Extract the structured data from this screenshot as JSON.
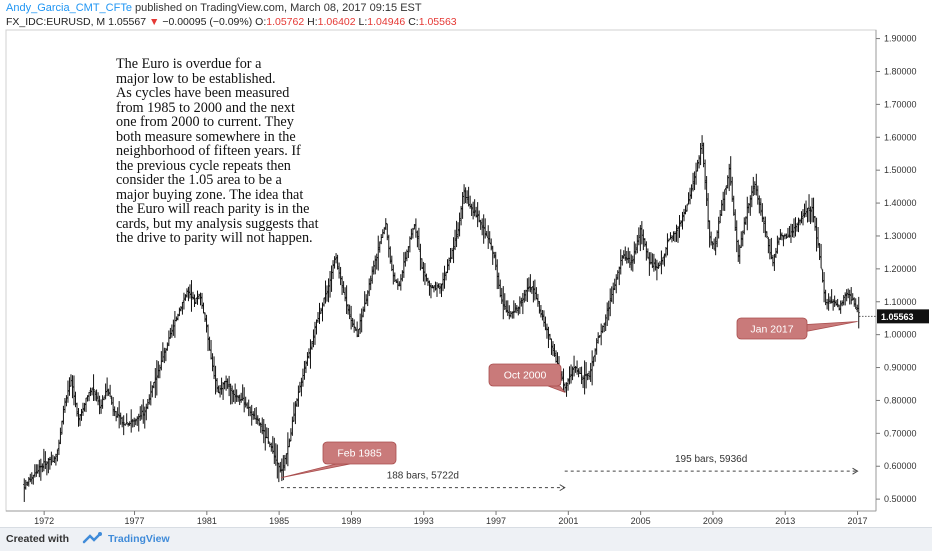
{
  "header": {
    "author": "Andy_Garcia_CMT_CFTe",
    "published_text": "published on TradingView.com, March 08, 2017 09:15 EST",
    "symbol": "FX_IDC:EURUSD, M",
    "last": "1.05567",
    "change": "−0.00095 (−0.09%)",
    "o_label": "O:",
    "o_value": "1.05762",
    "h_label": "H:",
    "h_value": "1.06402",
    "l_label": "L:",
    "l_value": "1.04946",
    "c_label": "C:",
    "c_value": "1.05563"
  },
  "note": "The Euro is overdue for a\nmajor low to be established.\nAs cycles have been measured\nfrom 1985 to 2000 and the next\none from 2000 to current.  They\nboth measure somewhere in the\nneighborhood of fifteen years. If\nthe previous cycle repeats then\nconsider the 1.05 area to be a\nmajor buying zone.  The idea that\nthe Euro will reach parity is in the\ncards, but my analysis suggests that\nthe drive to parity will not happen.",
  "footer": {
    "created_with": "Created with",
    "brand": "TradingView"
  },
  "colors": {
    "callout": "#c97a7a",
    "callout_border": "#a94e4e",
    "bars": "#111111",
    "last_price_bg": "#111111"
  },
  "chart_data": {
    "type": "ohlc-bar",
    "symbol": "EURUSD",
    "timeframe": "M",
    "xlim": [
      1970.0,
      2017.8
    ],
    "ylim": [
      0.47,
      1.92
    ],
    "x_ticks": [
      "1972",
      "1977",
      "1981",
      "1985",
      "1989",
      "1993",
      "1997",
      "2001",
      "2005",
      "2009",
      "2013",
      "2017"
    ],
    "x_tick_values": [
      1972,
      1977,
      1981,
      1985,
      1989,
      1993,
      1997,
      2001,
      2005,
      2009,
      2013,
      2017
    ],
    "y_ticks": [
      "0.50000",
      "0.60000",
      "0.70000",
      "0.80000",
      "0.90000",
      "1.00000",
      "1.10000",
      "1.20000",
      "1.30000",
      "1.40000",
      "1.50000",
      "1.60000",
      "1.70000",
      "1.80000",
      "1.90000"
    ],
    "y_tick_values": [
      0.5,
      0.6,
      0.7,
      0.8,
      0.9,
      1.0,
      1.1,
      1.2,
      1.3,
      1.4,
      1.5,
      1.6,
      1.7,
      1.8,
      1.9
    ],
    "last_price_label": "1.05563",
    "last_price": 1.05563,
    "price_path": [
      [
        1970.9,
        0.54
      ],
      [
        1971.5,
        0.58
      ],
      [
        1972.0,
        0.61
      ],
      [
        1972.5,
        0.62
      ],
      [
        1972.8,
        0.66
      ],
      [
        1973.1,
        0.78
      ],
      [
        1973.5,
        0.86
      ],
      [
        1973.9,
        0.74
      ],
      [
        1974.3,
        0.8
      ],
      [
        1974.7,
        0.84
      ],
      [
        1975.1,
        0.78
      ],
      [
        1975.5,
        0.84
      ],
      [
        1975.9,
        0.76
      ],
      [
        1976.4,
        0.73
      ],
      [
        1977.0,
        0.74
      ],
      [
        1977.6,
        0.77
      ],
      [
        1978.0,
        0.84
      ],
      [
        1978.5,
        0.92
      ],
      [
        1979.0,
        1.0
      ],
      [
        1979.5,
        1.08
      ],
      [
        1979.9,
        1.13
      ],
      [
        1980.3,
        1.1
      ],
      [
        1980.6,
        1.12
      ],
      [
        1980.9,
        1.05
      ],
      [
        1981.2,
        0.94
      ],
      [
        1981.6,
        0.82
      ],
      [
        1982.0,
        0.86
      ],
      [
        1982.5,
        0.82
      ],
      [
        1983.0,
        0.8
      ],
      [
        1983.5,
        0.76
      ],
      [
        1984.0,
        0.72
      ],
      [
        1984.5,
        0.66
      ],
      [
        1985.1,
        0.58
      ],
      [
        1985.5,
        0.66
      ],
      [
        1985.9,
        0.78
      ],
      [
        1986.4,
        0.9
      ],
      [
        1986.9,
        1.0
      ],
      [
        1987.3,
        1.08
      ],
      [
        1987.8,
        1.16
      ],
      [
        1988.1,
        1.24
      ],
      [
        1988.5,
        1.14
      ],
      [
        1988.9,
        1.06
      ],
      [
        1989.3,
        1.0
      ],
      [
        1989.7,
        1.08
      ],
      [
        1990.1,
        1.18
      ],
      [
        1990.5,
        1.26
      ],
      [
        1990.9,
        1.34
      ],
      [
        1991.2,
        1.2
      ],
      [
        1991.6,
        1.14
      ],
      [
        1992.0,
        1.24
      ],
      [
        1992.5,
        1.34
      ],
      [
        1992.9,
        1.2
      ],
      [
        1993.4,
        1.14
      ],
      [
        1993.9,
        1.14
      ],
      [
        1994.4,
        1.22
      ],
      [
        1994.9,
        1.32
      ],
      [
        1995.2,
        1.44
      ],
      [
        1995.6,
        1.38
      ],
      [
        1996.0,
        1.36
      ],
      [
        1996.5,
        1.3
      ],
      [
        1996.9,
        1.24
      ],
      [
        1997.3,
        1.1
      ],
      [
        1997.7,
        1.06
      ],
      [
        1998.2,
        1.08
      ],
      [
        1998.7,
        1.14
      ],
      [
        1999.1,
        1.14
      ],
      [
        1999.5,
        1.06
      ],
      [
        1999.9,
        1.0
      ],
      [
        2000.3,
        0.92
      ],
      [
        2000.8,
        0.84
      ],
      [
        2001.3,
        0.9
      ],
      [
        2001.8,
        0.87
      ],
      [
        2002.2,
        0.88
      ],
      [
        2002.6,
        0.98
      ],
      [
        2003.0,
        1.04
      ],
      [
        2003.5,
        1.14
      ],
      [
        2004.0,
        1.24
      ],
      [
        2004.5,
        1.22
      ],
      [
        2005.0,
        1.32
      ],
      [
        2005.5,
        1.22
      ],
      [
        2006.0,
        1.2
      ],
      [
        2006.5,
        1.28
      ],
      [
        2007.0,
        1.32
      ],
      [
        2007.5,
        1.38
      ],
      [
        2008.0,
        1.48
      ],
      [
        2008.4,
        1.58
      ],
      [
        2008.8,
        1.3
      ],
      [
        2009.1,
        1.26
      ],
      [
        2009.5,
        1.4
      ],
      [
        2009.9,
        1.5
      ],
      [
        2010.4,
        1.24
      ],
      [
        2010.8,
        1.36
      ],
      [
        2011.3,
        1.46
      ],
      [
        2011.8,
        1.34
      ],
      [
        2012.3,
        1.22
      ],
      [
        2012.7,
        1.3
      ],
      [
        2013.2,
        1.3
      ],
      [
        2013.7,
        1.34
      ],
      [
        2014.2,
        1.38
      ],
      [
        2014.5,
        1.38
      ],
      [
        2014.9,
        1.24
      ],
      [
        2015.2,
        1.1
      ],
      [
        2015.6,
        1.1
      ],
      [
        2016.0,
        1.08
      ],
      [
        2016.4,
        1.13
      ],
      [
        2016.8,
        1.1
      ],
      [
        2017.1,
        1.06
      ]
    ],
    "annotations": {
      "feb1985": {
        "label": "Feb 1985",
        "x": 1985.1,
        "y": 0.565
      },
      "oct2000": {
        "label": "Oct 2000",
        "x": 2000.8,
        "y": 0.825
      },
      "jan2017": {
        "label": "Jan 2017",
        "x": 2017.0,
        "y": 1.04
      }
    },
    "measures": [
      {
        "label": "188 bars, 5722d",
        "x0": 1985.1,
        "x1": 2000.8,
        "y": 0.535
      },
      {
        "label": "195 bars, 5936d",
        "x0": 2000.8,
        "x1": 2017.0,
        "y": 0.585
      }
    ]
  }
}
